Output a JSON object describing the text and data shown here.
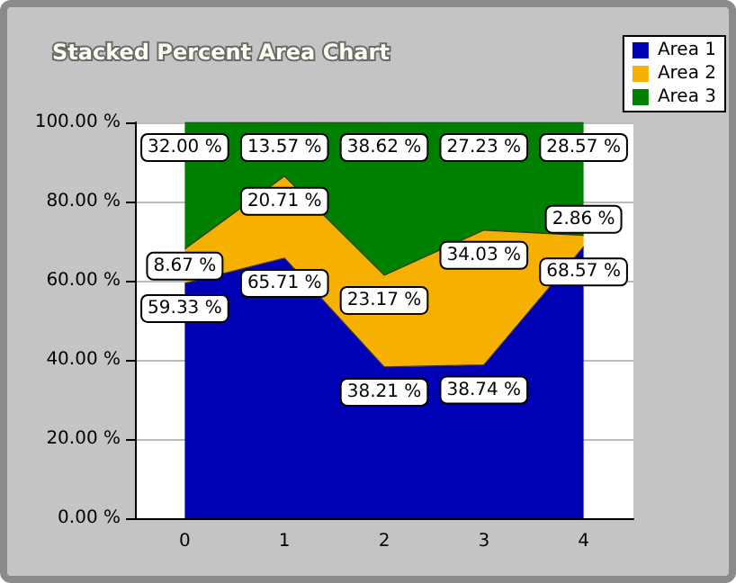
{
  "chart_data": {
    "type": "area",
    "title": "Stacked Percent Area Chart",
    "stacked": true,
    "categories": [
      "0",
      "1",
      "2",
      "3",
      "4"
    ],
    "series": [
      {
        "name": "Area 1",
        "color": "#0000b4",
        "values": [
          59.33,
          65.71,
          38.21,
          38.74,
          68.57
        ],
        "value_labels": [
          "59.33 %",
          "65.71 %",
          "38.21 %",
          "38.74 %",
          "68.57 %"
        ]
      },
      {
        "name": "Area 2",
        "color": "#f5b000",
        "values": [
          8.67,
          20.71,
          23.17,
          34.03,
          2.86
        ],
        "value_labels": [
          "8.67 %",
          "20.71 %",
          "23.17 %",
          "34.03 %",
          "2.86 %"
        ]
      },
      {
        "name": "Area 3",
        "color": "#008000",
        "values": [
          32.0,
          13.57,
          38.62,
          27.23,
          28.57
        ],
        "value_labels": [
          "32.00 %",
          "13.57 %",
          "38.62 %",
          "27.23 %",
          "28.57 %"
        ]
      }
    ],
    "ylim": [
      0,
      100
    ],
    "yticks": [
      {
        "value": 0,
        "label": "0.00 %"
      },
      {
        "value": 20,
        "label": "20.00 %"
      },
      {
        "value": 40,
        "label": "40.00 %"
      },
      {
        "value": 60,
        "label": "60.00 %"
      },
      {
        "value": 80,
        "label": "80.00 %"
      },
      {
        "value": 100,
        "label": "100.00 %"
      }
    ],
    "grid": "y",
    "legend": "top right",
    "marker": "none"
  }
}
